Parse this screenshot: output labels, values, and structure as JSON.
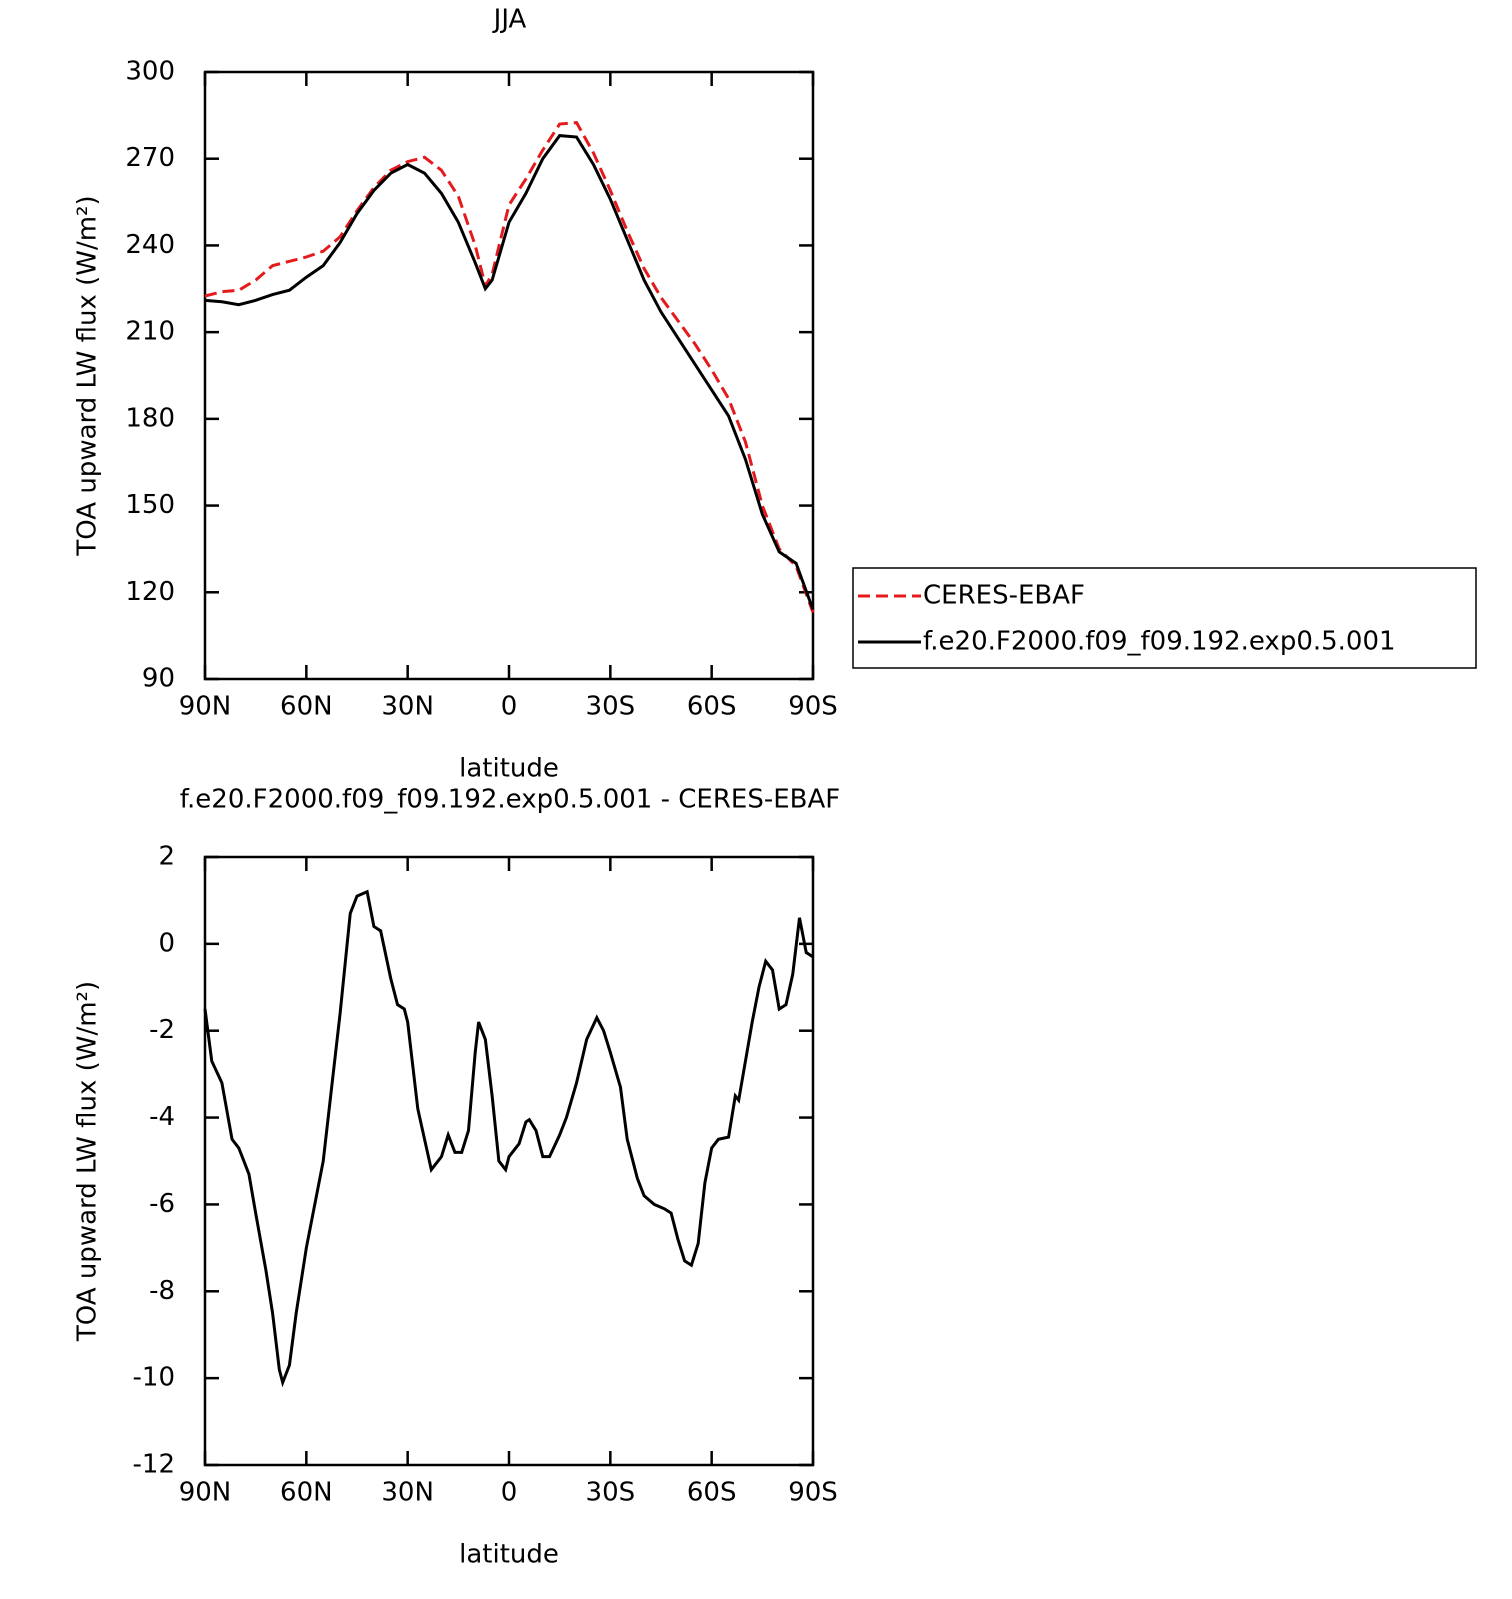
{
  "chart_data": [
    {
      "type": "line",
      "title": "JJA",
      "x_label": "latitude",
      "y_label": "TOA upward LW flux (W/m²)",
      "x": [
        90,
        85,
        80,
        75,
        70,
        65,
        60,
        55,
        50,
        45,
        40,
        35,
        30,
        25,
        20,
        15,
        10,
        7,
        5,
        0,
        -5,
        -10,
        -15,
        -20,
        -25,
        -30,
        -35,
        -40,
        -45,
        -50,
        -55,
        -60,
        -65,
        -70,
        -75,
        -80,
        -85,
        -90
      ],
      "series": [
        {
          "name": "CERES-EBAF",
          "color": "#e41a1c",
          "dash": true,
          "values": [
            222.5,
            224,
            224.5,
            228,
            233,
            234.5,
            236,
            238,
            243,
            252,
            260,
            266,
            269,
            270.5,
            266,
            257,
            240,
            226,
            230,
            254,
            263,
            273,
            282,
            282.5,
            272,
            259,
            245,
            232,
            222,
            214,
            206,
            197,
            187,
            172,
            150,
            135,
            129,
            113
          ]
        },
        {
          "name": "f.e20.F2000.f09_f09.192.exp0.5.001",
          "color": "#000000",
          "dash": false,
          "values": [
            221,
            220.5,
            219.5,
            221,
            223,
            224.5,
            229,
            233,
            241,
            251,
            259,
            265,
            268,
            265,
            258,
            248,
            234,
            225,
            228,
            248,
            258,
            270,
            278,
            277.5,
            268,
            256,
            242,
            228,
            217,
            208,
            199,
            190,
            181,
            166,
            147,
            134,
            130,
            114
          ]
        }
      ],
      "xlim": [
        90,
        -90
      ],
      "xticks": [
        {
          "value": 90,
          "label": "90N"
        },
        {
          "value": 60,
          "label": "60N"
        },
        {
          "value": 30,
          "label": "30N"
        },
        0,
        {
          "value": -30,
          "label": "30S"
        },
        {
          "value": -60,
          "label": "60S"
        },
        {
          "value": -90,
          "label": "90S"
        }
      ],
      "ylim": [
        90,
        300
      ],
      "yticks": [
        90,
        120,
        150,
        180,
        210,
        240,
        270,
        300
      ],
      "legend": "right"
    },
    {
      "type": "line",
      "title": "f.e20.F2000.f09_f09.192.exp0.5.001 - CERES-EBAF",
      "x_label": "latitude",
      "y_label": "TOA upward LW flux (W/m²)",
      "x": [
        90,
        88,
        85,
        82,
        80,
        77,
        75,
        72,
        70,
        68,
        67,
        65,
        63,
        60,
        55,
        50,
        47,
        45,
        42,
        40,
        38,
        35,
        33,
        31,
        30,
        27,
        25,
        23,
        20,
        18,
        16,
        14,
        12,
        10,
        9,
        7,
        5,
        3,
        1,
        0,
        -3,
        -5,
        -6,
        -8,
        -10,
        -12,
        -15,
        -17,
        -20,
        -23,
        -26,
        -28,
        -30,
        -33,
        -35,
        -38,
        -40,
        -43,
        -46,
        -48,
        -50,
        -52,
        -54,
        -56,
        -58,
        -60,
        -62,
        -65,
        -67,
        -68,
        -70,
        -72,
        -74,
        -76,
        -78,
        -80,
        -82,
        -84,
        -86,
        -88,
        -90
      ],
      "series": [
        {
          "color": "#000000",
          "dash": false,
          "values": [
            -1.5,
            -2.7,
            -3.2,
            -4.5,
            -4.7,
            -5.3,
            -6.2,
            -7.5,
            -8.5,
            -9.8,
            -10.1,
            -9.7,
            -8.5,
            -7.0,
            -5.0,
            -1.6,
            0.7,
            1.1,
            1.2,
            0.4,
            0.3,
            -0.8,
            -1.4,
            -1.5,
            -1.8,
            -3.8,
            -4.5,
            -5.2,
            -4.9,
            -4.4,
            -4.8,
            -4.8,
            -4.3,
            -2.5,
            -1.8,
            -2.2,
            -3.5,
            -5.0,
            -5.2,
            -4.9,
            -4.6,
            -4.1,
            -4.05,
            -4.3,
            -4.9,
            -4.9,
            -4.4,
            -4.0,
            -3.2,
            -2.2,
            -1.7,
            -2.0,
            -2.5,
            -3.3,
            -4.5,
            -5.4,
            -5.8,
            -6.0,
            -6.1,
            -6.2,
            -6.8,
            -7.3,
            -7.4,
            -6.9,
            -5.5,
            -4.7,
            -4.5,
            -4.45,
            -3.5,
            -3.6,
            -2.7,
            -1.8,
            -1.0,
            -0.4,
            -0.6,
            -1.5,
            -1.4,
            -0.7,
            0.6,
            -0.2,
            -0.3
          ]
        }
      ],
      "xlim": [
        90,
        -90
      ],
      "xticks": [
        {
          "value": 90,
          "label": "90N"
        },
        {
          "value": 60,
          "label": "60N"
        },
        {
          "value": 30,
          "label": "30N"
        },
        0,
        {
          "value": -30,
          "label": "30S"
        },
        {
          "value": -60,
          "label": "60S"
        },
        {
          "value": -90,
          "label": "90S"
        }
      ],
      "ylim": [
        -12,
        2
      ],
      "yticks": [
        -12,
        -10,
        -8,
        -6,
        -4,
        -2,
        0,
        2
      ]
    }
  ]
}
